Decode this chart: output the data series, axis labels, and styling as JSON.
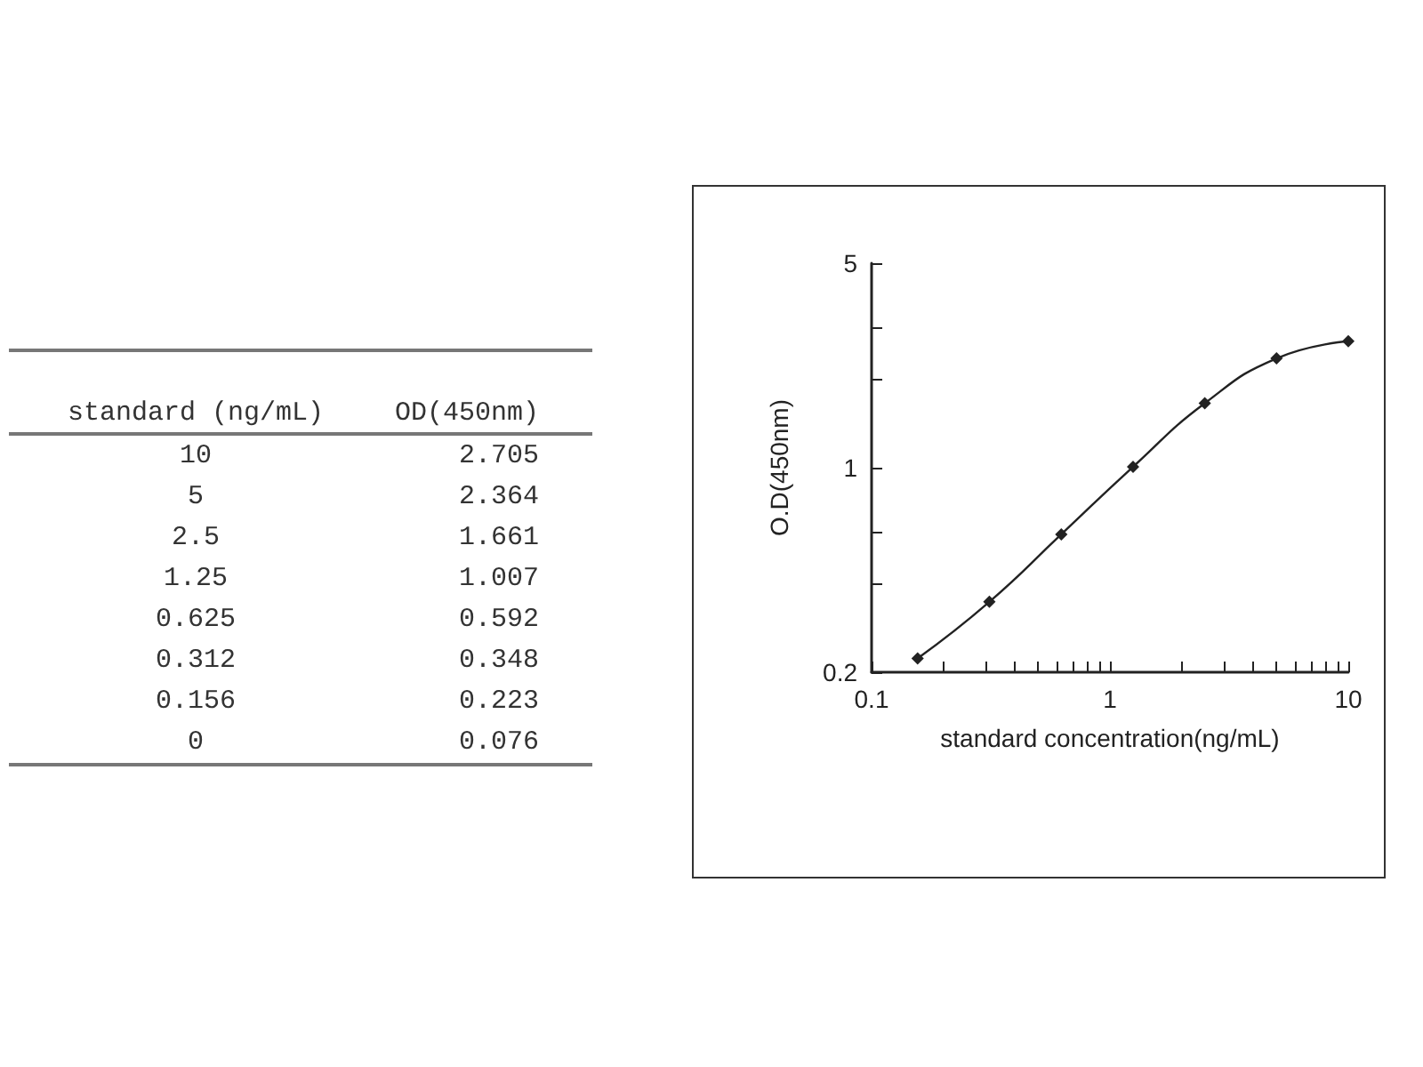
{
  "chart_data": [
    {
      "type": "other",
      "annotations": [
        "standard (ng/mL)",
        "OD(450nm)",
        "10",
        "2.705",
        "5",
        "2.364",
        "2.5",
        "1.661",
        "1.25",
        "1.007",
        "0.625",
        "0.592",
        "0.312",
        "0.348",
        "0.156",
        "0.223",
        "0",
        "0.076"
      ]
    },
    {
      "type": "line",
      "xlabel": "standard concentration(ng/mL)",
      "ylabel": "O.D(450nm)",
      "x": [
        10,
        5,
        2.5,
        1.25,
        0.625,
        0.312,
        0.156
      ],
      "series": [
        {
          "color": "#222222",
          "values": [
            2.705,
            2.364,
            1.661,
            1.007,
            0.592,
            0.348,
            0.223
          ]
        }
      ],
      "log": "xy",
      "xlim": [
        0.1,
        10
      ],
      "ylim": [
        0.2,
        5
      ],
      "xticks": [
        0.1,
        {
          "value": 0.2,
          "label": null
        },
        {
          "value": 0.3,
          "label": null
        },
        {
          "value": 0.4,
          "label": null
        },
        {
          "value": 0.5,
          "label": null
        },
        {
          "value": 0.6,
          "label": null
        },
        {
          "value": 0.7,
          "label": null
        },
        {
          "value": 0.8,
          "label": null
        },
        {
          "value": 0.9,
          "label": null
        },
        1,
        {
          "value": 2,
          "label": null
        },
        {
          "value": 3,
          "label": null
        },
        {
          "value": 4,
          "label": null
        },
        {
          "value": 5,
          "label": null
        },
        {
          "value": 6,
          "label": null
        },
        {
          "value": 7,
          "label": null
        },
        {
          "value": 8,
          "label": null
        },
        {
          "value": 9,
          "label": null
        },
        10
      ],
      "yticks": [
        0.2,
        {
          "value": 0.4,
          "label": null
        },
        {
          "value": 0.6,
          "label": null
        },
        1,
        {
          "value": 2,
          "label": null
        },
        {
          "value": 3,
          "label": null
        },
        5
      ],
      "marker": "diamond",
      "line_style": "solid",
      "grid": false
    }
  ]
}
